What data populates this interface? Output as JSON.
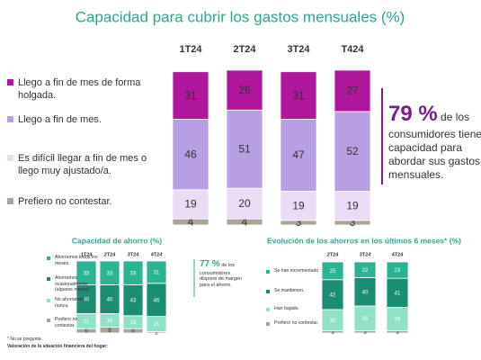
{
  "chart_data": [
    {
      "type": "stacked-bar",
      "title": "Capacidad para cubrir los gastos mensuales (%)",
      "categories": [
        "1T24",
        "2T24",
        "3T24",
        "T424"
      ],
      "series": [
        {
          "name": "Llego a fin de mes de forma holgada.",
          "color": "#b0169c",
          "values": [
            31,
            26,
            31,
            27
          ]
        },
        {
          "name": "Llego a fin de mes.",
          "color": "#b89ee3",
          "values": [
            46,
            51,
            47,
            52
          ]
        },
        {
          "name": "Es difícil llegar a fin de mes o llego muy ajustado/a.",
          "color": "#eadcf4",
          "values": [
            19,
            20,
            19,
            19
          ]
        },
        {
          "name": "Prefiero no contestar.",
          "color": "#a9a597",
          "values": [
            4,
            4,
            3,
            3
          ]
        }
      ],
      "callout": {
        "value": "79 %",
        "text": "de los consumidores tiene capacidad para abordar sus gastos mensuales."
      }
    },
    {
      "type": "stacked-bar",
      "title": "Capacidad de ahorro (%)",
      "categories": [
        "1T24",
        "2T24",
        "3T24",
        "4T24"
      ],
      "series": [
        {
          "name": "Ahorramos todos los meses.",
          "color": "#2bb494",
          "values": [
            33,
            33,
            33,
            31
          ]
        },
        {
          "name": "Ahorramos ocasionalmente (algunos meses).",
          "color": "#1b8d72",
          "values": [
            40,
            40,
            43,
            46
          ]
        },
        {
          "name": "No ahorramos nunca.",
          "color": "#8fe2c8",
          "values": [
            21,
            19,
            18,
            21
          ]
        },
        {
          "name": "Prefiero no contestar.",
          "color": "#a9a597",
          "values": [
            6,
            8,
            6,
            2
          ]
        }
      ],
      "callout": {
        "value": "77 %",
        "text": "de los consumidores dispone de margen para el ahorro."
      }
    },
    {
      "type": "stacked-bar",
      "title": "Evolución de los ahorros en los últimos 6 meses* (%)",
      "categories": [
        "2T24",
        "3T24",
        "4T24"
      ],
      "series": [
        {
          "name": "Se han incrementado.",
          "color": "#2bb494",
          "values": [
            25,
            22,
            23
          ]
        },
        {
          "name": "Se mantienen.",
          "color": "#1b8d72",
          "values": [
            42,
            40,
            41
          ]
        },
        {
          "name": "Han bajado.",
          "color": "#8fe2c8",
          "values": [
            30,
            35,
            33
          ]
        },
        {
          "name": "Prefiero no contestar.",
          "color": "#a9a597",
          "values": [
            3,
            3,
            3
          ]
        }
      ]
    }
  ],
  "footnotes": [
    "* No se pregunta",
    "Valoración de la situación financiera del hogar:"
  ]
}
